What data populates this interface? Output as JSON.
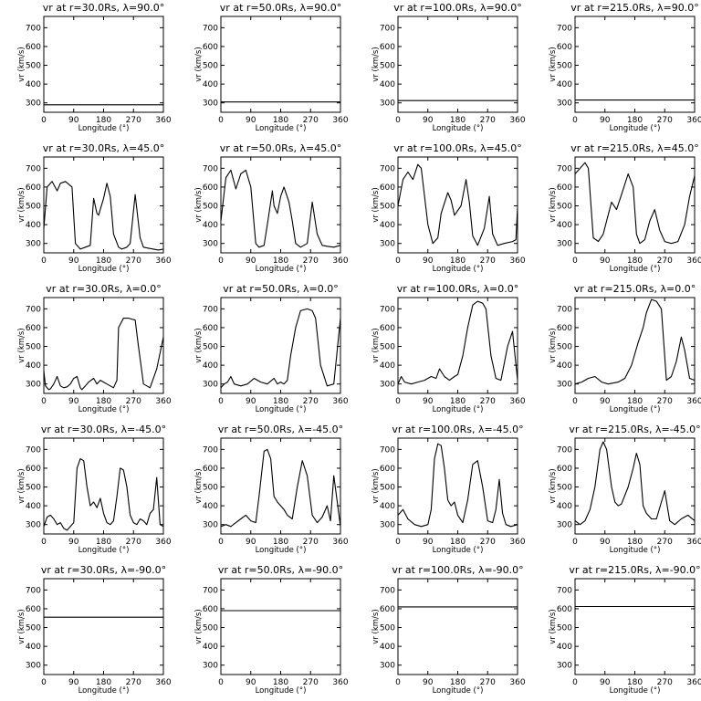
{
  "chart_data": {
    "type": "line",
    "layout": {
      "rows": 5,
      "cols": 4
    },
    "xlabel": "Longitude (°)",
    "ylabel": "vr (km/s)",
    "xlim": [
      0,
      360
    ],
    "ylim": [
      250,
      760
    ],
    "xticks": [
      0,
      90,
      180,
      270,
      360
    ],
    "yticks": [
      300,
      400,
      500,
      600,
      700
    ],
    "panels": [
      {
        "title": "vr at r=30.0Rs, λ=90.0°",
        "series": [
          {
            "x": [
              0,
              360
            ],
            "y": [
              290,
              290
            ]
          }
        ]
      },
      {
        "title": "vr at r=50.0Rs, λ=90.0°",
        "series": [
          {
            "x": [
              0,
              360
            ],
            "y": [
              305,
              305
            ]
          }
        ]
      },
      {
        "title": "vr at r=100.0Rs, λ=90.0°",
        "series": [
          {
            "x": [
              0,
              360
            ],
            "y": [
              312,
              312
            ]
          }
        ]
      },
      {
        "title": "vr at r=215.0Rs, λ=90.0°",
        "series": [
          {
            "x": [
              0,
              360
            ],
            "y": [
              315,
              315
            ]
          }
        ]
      },
      {
        "title": "vr at r=30.0Rs, λ=45.0°",
        "series": [
          {
            "x": [
              0,
              10,
              25,
              40,
              50,
              65,
              85,
              95,
              110,
              125,
              140,
              150,
              160,
              165,
              180,
              190,
              200,
              210,
              225,
              235,
              250,
              260,
              275,
              290,
              300,
              315,
              330,
              345,
              360
            ],
            "y": [
              380,
              600,
              630,
              580,
              620,
              630,
              600,
              300,
              270,
              280,
              290,
              540,
              460,
              450,
              540,
              620,
              550,
              350,
              280,
              270,
              280,
              300,
              560,
              330,
              280,
              275,
              270,
              265,
              270
            ]
          }
        ]
      },
      {
        "title": "vr at r=50.0Rs, λ=45.0°",
        "series": [
          {
            "x": [
              0,
              15,
              30,
              45,
              60,
              75,
              90,
              105,
              115,
              130,
              140,
              155,
              160,
              170,
              180,
              190,
              205,
              215,
              225,
              240,
              260,
              275,
              290,
              305,
              320,
              340,
              360
            ],
            "y": [
              420,
              650,
              690,
              590,
              670,
              690,
              600,
              300,
              280,
              290,
              400,
              580,
              500,
              460,
              550,
              600,
              520,
              420,
              300,
              280,
              300,
              520,
              350,
              290,
              285,
              280,
              290
            ]
          }
        ]
      },
      {
        "title": "vr at r=100.0Rs, λ=45.0°",
        "series": [
          {
            "x": [
              0,
              15,
              30,
              45,
              60,
              70,
              90,
              105,
              120,
              130,
              150,
              160,
              170,
              190,
              205,
              215,
              225,
              240,
              260,
              275,
              285,
              300,
              320,
              345,
              355,
              360
            ],
            "y": [
              500,
              640,
              680,
              640,
              720,
              700,
              400,
              300,
              330,
              460,
              570,
              530,
              450,
              500,
              640,
              520,
              340,
              290,
              380,
              550,
              350,
              290,
              300,
              310,
              320,
              490
            ]
          }
        ]
      },
      {
        "title": "vr at r=215.0Rs, λ=45.0°",
        "series": [
          {
            "x": [
              0,
              15,
              30,
              40,
              55,
              70,
              85,
              95,
              110,
              125,
              140,
              160,
              175,
              185,
              195,
              210,
              225,
              240,
              255,
              270,
              290,
              310,
              330,
              345,
              360
            ],
            "y": [
              670,
              700,
              730,
              700,
              330,
              310,
              350,
              420,
              520,
              480,
              560,
              670,
              600,
              350,
              300,
              320,
              420,
              480,
              370,
              310,
              300,
              310,
              400,
              550,
              660
            ]
          }
        ]
      },
      {
        "title": "vr at r=30.0Rs, λ=0.0°",
        "series": [
          {
            "x": [
              0,
              5,
              10,
              15,
              20,
              30,
              40,
              50,
              60,
              70,
              80,
              90,
              100,
              110,
              115,
              125,
              135,
              150,
              160,
              170,
              180,
              190,
              200,
              210,
              220,
              225,
              240,
              255,
              275,
              285,
              300,
              320,
              340,
              360
            ],
            "y": [
              370,
              290,
              280,
              270,
              275,
              300,
              340,
              290,
              280,
              285,
              300,
              330,
              340,
              280,
              270,
              290,
              310,
              330,
              300,
              320,
              310,
              300,
              290,
              280,
              320,
              600,
              650,
              650,
              640,
              500,
              300,
              280,
              380,
              550
            ]
          }
        ]
      },
      {
        "title": "vr at r=50.0Rs, λ=0.0°",
        "series": [
          {
            "x": [
              0,
              10,
              20,
              30,
              40,
              60,
              80,
              100,
              120,
              140,
              160,
              170,
              180,
              190,
              200,
              210,
              225,
              240,
              260,
              275,
              285,
              300,
              320,
              340,
              360
            ],
            "y": [
              280,
              300,
              310,
              340,
              300,
              290,
              300,
              330,
              310,
              300,
              330,
              300,
              310,
              300,
              320,
              450,
              600,
              690,
              700,
              690,
              650,
              400,
              290,
              300,
              650
            ]
          }
        ]
      },
      {
        "title": "vr at r=100.0Rs, λ=0.0°",
        "series": [
          {
            "x": [
              0,
              10,
              20,
              40,
              60,
              80,
              100,
              115,
              125,
              140,
              155,
              170,
              180,
              195,
              210,
              225,
              240,
              255,
              265,
              280,
              295,
              310,
              330,
              345,
              360
            ],
            "y": [
              300,
              340,
              310,
              300,
              310,
              320,
              340,
              330,
              380,
              340,
              320,
              340,
              350,
              450,
              600,
              720,
              740,
              730,
              700,
              450,
              330,
              320,
              500,
              580,
              320
            ]
          }
        ]
      },
      {
        "title": "vr at r=215.0Rs, λ=0.0°",
        "series": [
          {
            "x": [
              0,
              20,
              40,
              60,
              80,
              100,
              130,
              150,
              170,
              190,
              205,
              215,
              230,
              245,
              260,
              275,
              290,
              305,
              320,
              330,
              345,
              360
            ],
            "y": [
              300,
              310,
              330,
              340,
              310,
              300,
              310,
              330,
              400,
              520,
              600,
              680,
              750,
              740,
              700,
              320,
              340,
              420,
              550,
              480,
              330,
              320
            ]
          }
        ]
      },
      {
        "title": "vr at r=30.0Rs, λ=-45.0°",
        "series": [
          {
            "x": [
              0,
              10,
              20,
              30,
              40,
              50,
              60,
              70,
              80,
              90,
              100,
              110,
              120,
              130,
              140,
              150,
              160,
              170,
              180,
              190,
              200,
              210,
              220,
              230,
              240,
              250,
              260,
              270,
              280,
              290,
              300,
              310,
              320,
              330,
              340,
              350,
              360
            ],
            "y": [
              290,
              340,
              350,
              330,
              300,
              310,
              280,
              270,
              290,
              310,
              600,
              650,
              640,
              500,
              400,
              420,
              390,
              440,
              360,
              310,
              300,
              320,
              450,
              600,
              590,
              500,
              350,
              310,
              300,
              330,
              320,
              300,
              360,
              380,
              550,
              300,
              290
            ]
          }
        ]
      },
      {
        "title": "vr at r=50.0Rs, λ=-45.0°",
        "series": [
          {
            "x": [
              0,
              15,
              30,
              45,
              60,
              75,
              90,
              105,
              115,
              130,
              140,
              150,
              160,
              170,
              180,
              190,
              200,
              215,
              230,
              245,
              260,
              275,
              290,
              305,
              320,
              330,
              340,
              360
            ],
            "y": [
              290,
              300,
              290,
              310,
              330,
              350,
              320,
              310,
              450,
              690,
              700,
              650,
              450,
              420,
              400,
              380,
              350,
              330,
              500,
              640,
              560,
              350,
              310,
              340,
              400,
              320,
              560,
              290
            ]
          }
        ]
      },
      {
        "title": "vr at r=100.0Rs, λ=-45.0°",
        "series": [
          {
            "x": [
              0,
              15,
              30,
              50,
              70,
              90,
              100,
              110,
              120,
              130,
              140,
              150,
              160,
              170,
              180,
              195,
              210,
              225,
              240,
              255,
              270,
              285,
              295,
              305,
              315,
              325,
              340,
              360
            ],
            "y": [
              350,
              380,
              330,
              300,
              290,
              300,
              380,
              650,
              730,
              720,
              600,
              430,
              400,
              420,
              350,
              310,
              430,
              620,
              640,
              500,
              320,
              310,
              380,
              540,
              360,
              300,
              290,
              300
            ]
          }
        ]
      },
      {
        "title": "vr at r=215.0Rs, λ=-45.0°",
        "series": [
          {
            "x": [
              0,
              15,
              30,
              45,
              60,
              75,
              85,
              95,
              110,
              120,
              130,
              140,
              160,
              175,
              185,
              195,
              205,
              215,
              230,
              245,
              260,
              270,
              285,
              300,
              320,
              340,
              360
            ],
            "y": [
              320,
              300,
              320,
              380,
              500,
              700,
              740,
              700,
              500,
              420,
              400,
              410,
              500,
              600,
              680,
              620,
              400,
              360,
              330,
              330,
              420,
              480,
              320,
              300,
              330,
              350,
              320
            ]
          }
        ]
      },
      {
        "title": "vr at r=30.0Rs, λ=-90.0°",
        "series": [
          {
            "x": [
              0,
              360
            ],
            "y": [
              555,
              555
            ]
          }
        ]
      },
      {
        "title": "vr at r=50.0Rs, λ=-90.0°",
        "series": [
          {
            "x": [
              0,
              360
            ],
            "y": [
              590,
              590
            ]
          }
        ]
      },
      {
        "title": "vr at r=100.0Rs, λ=-90.0°",
        "series": [
          {
            "x": [
              0,
              360
            ],
            "y": [
              610,
              610
            ]
          }
        ]
      },
      {
        "title": "vr at r=215.0Rs, λ=-90.0°",
        "series": [
          {
            "x": [
              0,
              360
            ],
            "y": [
              612,
              612
            ]
          }
        ]
      }
    ]
  }
}
